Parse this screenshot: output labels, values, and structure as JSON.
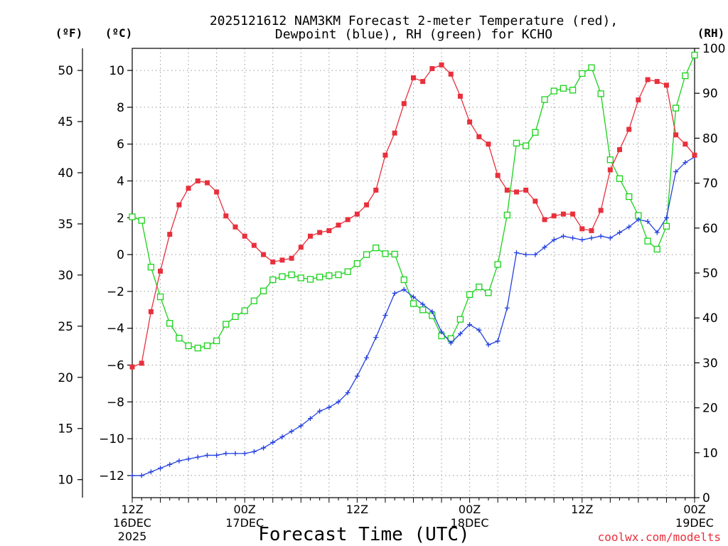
{
  "chart_data": {
    "type": "line",
    "title_line1": "2025121612 NAM3KM Forecast 2-meter Temperature (red),",
    "title_line2": "Dewpoint (blue), RH (green) for KCHO",
    "left_outer_unit": "(ºF)",
    "left_inner_unit": "(ºC)",
    "right_unit": "(RH)",
    "xlabel": "Forecast Time (UTC)",
    "credit": "coolwx.com/modelts",
    "colors": {
      "temperature": "#e8303c",
      "dewpoint": "#2440e0",
      "rh": "#1ad21a",
      "grid": "#999999"
    },
    "x": {
      "min": 0,
      "max": 60,
      "step_hours": 1
    },
    "x_ticks": [
      {
        "hour": 0,
        "label": "12Z",
        "day": "16DEC",
        "year": "2025"
      },
      {
        "hour": 12,
        "label": "00Z",
        "day": "17DEC"
      },
      {
        "hour": 24,
        "label": "12Z",
        "day": ""
      },
      {
        "hour": 36,
        "label": "00Z",
        "day": "18DEC"
      },
      {
        "hour": 48,
        "label": "12Z",
        "day": ""
      },
      {
        "hour": 60,
        "label": "00Z",
        "day": "19DEC"
      }
    ],
    "y_celsius": {
      "min": -13.2,
      "max": 11.2,
      "ticks": [
        -12,
        -10,
        -8,
        -6,
        -4,
        -2,
        0,
        2,
        4,
        6,
        8,
        10
      ]
    },
    "y_fahrenheit": {
      "ticks": [
        10,
        15,
        20,
        25,
        30,
        35,
        40,
        45,
        50
      ]
    },
    "y_rh": {
      "min": 0,
      "max": 100,
      "ticks": [
        0,
        10,
        20,
        30,
        40,
        50,
        60,
        70,
        80,
        90,
        100
      ]
    },
    "series": [
      {
        "name": "Temperature",
        "unit": "C",
        "marker": "filled-square",
        "values": [
          -6.1,
          -5.9,
          -3.1,
          -0.9,
          1.1,
          2.7,
          3.6,
          4.0,
          3.9,
          3.4,
          2.1,
          1.5,
          1.0,
          0.5,
          -0.0,
          -0.4,
          -0.3,
          -0.2,
          0.4,
          1.0,
          1.2,
          1.3,
          1.6,
          1.9,
          2.2,
          2.7,
          3.5,
          5.4,
          6.6,
          8.2,
          9.6,
          9.4,
          10.1,
          10.3,
          9.8,
          8.6,
          7.2,
          6.4,
          6.0,
          4.3,
          3.5,
          3.4,
          3.5,
          2.9,
          1.9,
          2.1,
          2.2,
          2.2,
          1.4,
          1.3,
          2.4,
          4.6,
          5.7,
          6.8,
          8.4,
          9.5,
          9.4,
          9.2,
          6.5,
          6.0,
          5.4
        ]
      },
      {
        "name": "Dewpoint",
        "unit": "C",
        "marker": "plus",
        "values": [
          -12.0,
          -12.0,
          -11.8,
          -11.6,
          -11.4,
          -11.2,
          -11.1,
          -11.0,
          -10.9,
          -10.9,
          -10.8,
          -10.8,
          -10.8,
          -10.7,
          -10.5,
          -10.2,
          -9.9,
          -9.6,
          -9.3,
          -8.9,
          -8.5,
          -8.3,
          -8.0,
          -7.5,
          -6.6,
          -5.6,
          -4.5,
          -3.3,
          -2.1,
          -1.9,
          -2.3,
          -2.7,
          -3.1,
          -4.2,
          -4.8,
          -4.3,
          -3.8,
          -4.1,
          -4.9,
          -4.7,
          -2.9,
          0.1,
          0.0,
          0.0,
          0.4,
          0.8,
          1.0,
          0.9,
          0.8,
          0.9,
          1.0,
          0.9,
          1.2,
          1.5,
          1.9,
          1.8,
          1.2,
          2.0,
          4.5,
          5.0,
          5.3
        ]
      },
      {
        "name": "RH",
        "unit": "%",
        "marker": "open-square",
        "values": [
          62.5,
          61.7,
          51.3,
          44.7,
          38.8,
          35.5,
          33.8,
          33.3,
          33.8,
          34.9,
          38.6,
          40.3,
          41.6,
          43.8,
          46.0,
          48.5,
          49.2,
          49.6,
          48.9,
          48.6,
          49.1,
          49.4,
          49.6,
          50.3,
          52.1,
          54.1,
          55.6,
          54.3,
          54.2,
          48.5,
          43.2,
          41.8,
          40.5,
          36.0,
          35.4,
          39.7,
          45.2,
          46.9,
          45.6,
          51.9,
          62.9,
          78.9,
          78.3,
          81.3,
          88.6,
          90.5,
          91.1,
          90.7,
          94.4,
          95.7,
          89.9,
          75.2,
          71.0,
          67.0,
          62.8,
          57.1,
          55.3,
          60.4,
          86.7,
          93.9,
          98.5
        ]
      }
    ]
  }
}
